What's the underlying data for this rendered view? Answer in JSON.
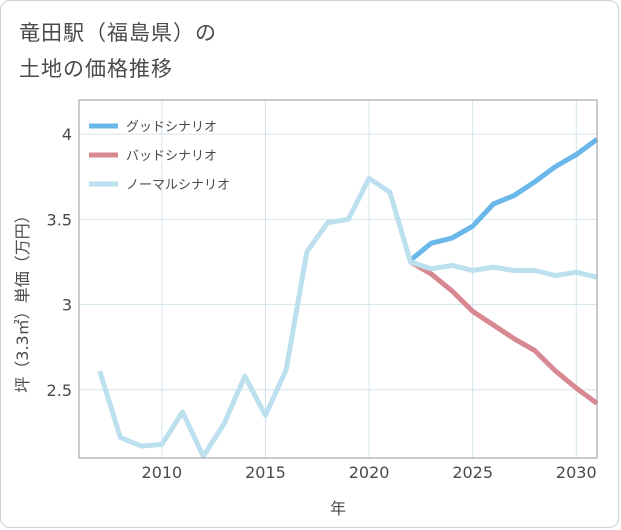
{
  "title": "竜田駅（福島県）の\n土地の価格推移",
  "chart_data": {
    "type": "line",
    "xlabel": "年",
    "ylabel": "坪（3.3㎡）単価（万円）",
    "xlim": [
      2006,
      2031
    ],
    "ylim": [
      2.1,
      4.2
    ],
    "x_ticks": [
      2010,
      2015,
      2020,
      2025,
      2030
    ],
    "y_ticks": [
      2.5,
      3,
      3.5,
      4
    ],
    "y_tick_labels": [
      "2.5",
      "3",
      "3.5",
      "4"
    ],
    "grid": true,
    "legend_position": "top-left",
    "series": [
      {
        "name": "グッドシナリオ",
        "color": "#6ab7ea",
        "x": [
          2022,
          2023,
          2024,
          2025,
          2026,
          2027,
          2028,
          2029,
          2030,
          2031
        ],
        "values": [
          3.26,
          3.36,
          3.39,
          3.46,
          3.59,
          3.64,
          3.72,
          3.81,
          3.88,
          3.97
        ]
      },
      {
        "name": "バッドシナリオ",
        "color": "#d88890",
        "x": [
          2022,
          2023,
          2024,
          2025,
          2026,
          2027,
          2028,
          2029,
          2030,
          2031
        ],
        "values": [
          3.25,
          3.18,
          3.08,
          2.96,
          2.88,
          2.8,
          2.73,
          2.61,
          2.51,
          2.42
        ]
      },
      {
        "name": "ノーマルシナリオ",
        "color": "#bde0ef",
        "x": [
          2007,
          2008,
          2009,
          2010,
          2011,
          2012,
          2013,
          2014,
          2015,
          2016,
          2017,
          2018,
          2019,
          2020,
          2021,
          2022,
          2023,
          2024,
          2025,
          2026,
          2027,
          2028,
          2029,
          2030,
          2031
        ],
        "values": [
          2.61,
          2.22,
          2.17,
          2.18,
          2.37,
          2.11,
          2.3,
          2.58,
          2.35,
          2.62,
          3.31,
          3.48,
          3.5,
          3.74,
          3.66,
          3.25,
          3.21,
          3.23,
          3.2,
          3.22,
          3.2,
          3.2,
          3.17,
          3.19,
          3.16
        ]
      }
    ]
  }
}
